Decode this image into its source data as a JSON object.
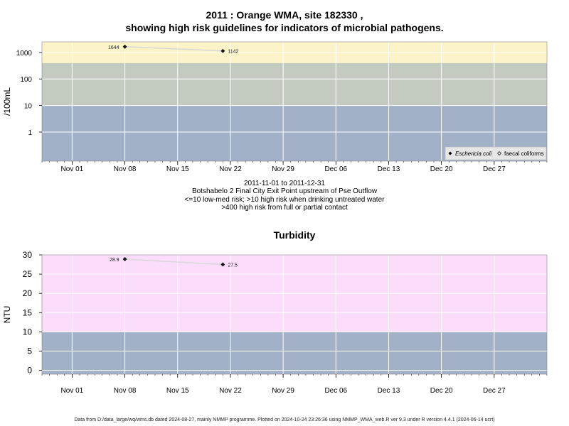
{
  "header": {
    "title_line1": "2011 : Orange WMA, site 182330 ,",
    "title_line2": "showing high risk guidelines for indicators of microbial pathogens."
  },
  "captions": [
    "2011-11-01 to 2011-12-31",
    "Botshabelo 2 Final City Exit Point upstream of Pse Outflow",
    "<=10 low-med risk; >10 high risk when drinking untreated water",
    ">400 high risk from full or partial contact"
  ],
  "footer": "Data from D:/data_large/wq/wms.db dated 2024-08-27, mainly NMMP programme. Plotted on 2024-10-24 23:26:36 using NMMP_WMA_web.R ver 9.3 under R version 4.4.1 (2024-06-14 ucrt)",
  "colors": {
    "band_low": "#a2b1c8",
    "band_mid": "#c3cbc0",
    "band_high_micro": "#fcf4c8",
    "band_high_turb": "#fbdcfb",
    "grid": "#ffffff",
    "line": "#d8d8d8",
    "point": "#1a1a1a"
  },
  "chart_data": [
    {
      "type": "line",
      "ylabel": "/100mL",
      "yscale": "log",
      "ylim": [
        0.08,
        2500
      ],
      "xlim": [
        "2011-10-28",
        "2012-01-03"
      ],
      "yticks": [
        1,
        10,
        100,
        1000
      ],
      "ytick_labels": [
        "1",
        "10",
        "100",
        "1000"
      ],
      "xticks": [
        "2011-11-01",
        "2011-11-08",
        "2011-11-15",
        "2011-11-22",
        "2011-11-29",
        "2011-12-06",
        "2011-12-13",
        "2011-12-20",
        "2011-12-27"
      ],
      "xtick_labels": [
        "Nov 01",
        "Nov 08",
        "Nov 15",
        "Nov 22",
        "Nov 29",
        "Dec 06",
        "Dec 13",
        "Dec 20",
        "Dec 27"
      ],
      "bands": [
        {
          "from": 0.08,
          "to": 10,
          "color": "#a2b1c8"
        },
        {
          "from": 10,
          "to": 400,
          "color": "#c3cbc0"
        },
        {
          "from": 400,
          "to": 2500,
          "color": "#fcf4c8"
        }
      ],
      "series": [
        {
          "name": "Eschericia coli",
          "x": [
            "2011-11-08",
            "2011-11-21"
          ],
          "y": [
            1644,
            1142
          ],
          "labels": [
            "1644",
            "1142"
          ]
        }
      ],
      "legend": {
        "items": [
          "Eschericia coli",
          "faecal coliforms"
        ],
        "placement": "bottom-right"
      },
      "grid": true
    },
    {
      "type": "line",
      "title": "Turbidity",
      "ylabel": "NTU",
      "ylim": [
        -1,
        30
      ],
      "xlim": [
        "2011-10-28",
        "2012-01-03"
      ],
      "yticks": [
        0,
        5,
        10,
        15,
        20,
        25,
        30
      ],
      "ytick_labels": [
        "0",
        "5",
        "10",
        "15",
        "20",
        "25",
        "30"
      ],
      "xticks": [
        "2011-11-01",
        "2011-11-08",
        "2011-11-15",
        "2011-11-22",
        "2011-11-29",
        "2011-12-06",
        "2011-12-13",
        "2011-12-20",
        "2011-12-27"
      ],
      "xtick_labels": [
        "Nov 01",
        "Nov 08",
        "Nov 15",
        "Nov 22",
        "Nov 29",
        "Dec 06",
        "Dec 13",
        "Dec 20",
        "Dec 27"
      ],
      "bands": [
        {
          "from": -1,
          "to": 10,
          "color": "#a2b1c8"
        },
        {
          "from": 10,
          "to": 30,
          "color": "#fbdcfb"
        }
      ],
      "series": [
        {
          "x": [
            "2011-11-08",
            "2011-11-21"
          ],
          "y": [
            28.9,
            27.5
          ],
          "labels": [
            "28.9",
            "27.5"
          ]
        }
      ],
      "grid": true
    }
  ]
}
